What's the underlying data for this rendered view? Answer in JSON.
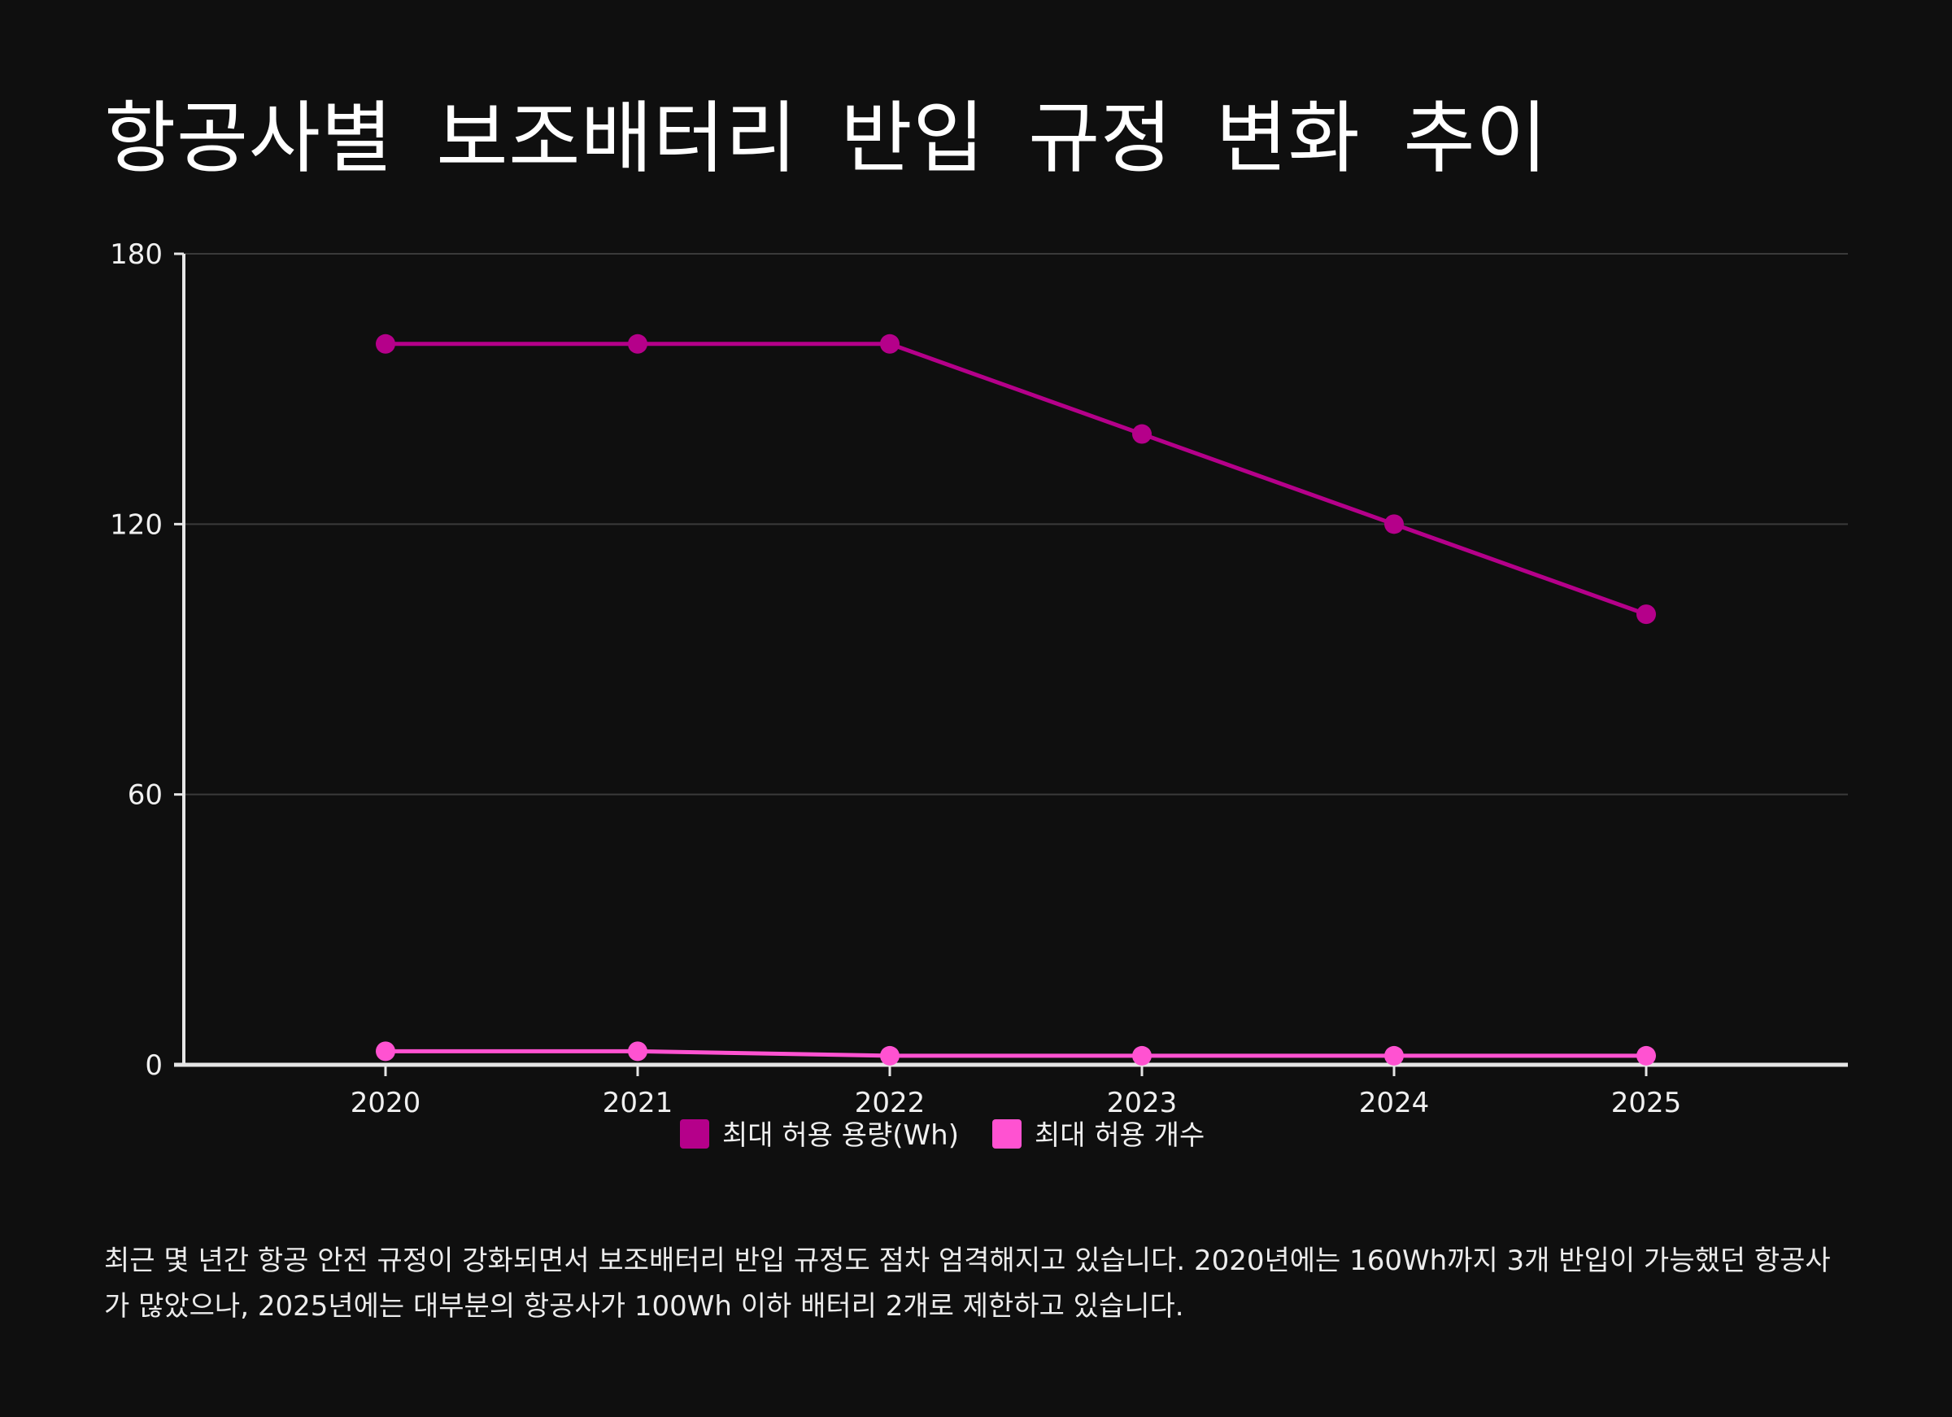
{
  "title": "항공사별 보조배터리 반입 규정 변화 추이",
  "caption": "최근 몇 년간 항공 안전 규정이 강화되면서 보조배터리 반입 규정도 점차 엄격해지고 있습니다. 2020년에는 160Wh까지 3개 반입이 가능했던 항공사가 많았으나, 2025년에는 대부분의 항공사가 100Wh 이하 배터리 2개로 제한하고 있습니다.",
  "chart_data": {
    "type": "line",
    "title": "항공사별 보조배터리 반입 규정 변화 추이",
    "xlabel": "",
    "ylabel": "",
    "categories": [
      "2020",
      "2021",
      "2022",
      "2023",
      "2024",
      "2025"
    ],
    "series": [
      {
        "name": "최대 허용 용량(Wh)",
        "values": [
          160,
          160,
          160,
          140,
          120,
          100
        ],
        "color": "#b5008a"
      },
      {
        "name": "최대 허용 개수",
        "values": [
          3,
          3,
          2,
          2,
          2,
          2
        ],
        "color": "#ff52d1"
      }
    ],
    "ylim": [
      0,
      180
    ],
    "yticks": [
      "0",
      "60",
      "120",
      "180"
    ],
    "grid": true,
    "legend": "bottom-center"
  }
}
